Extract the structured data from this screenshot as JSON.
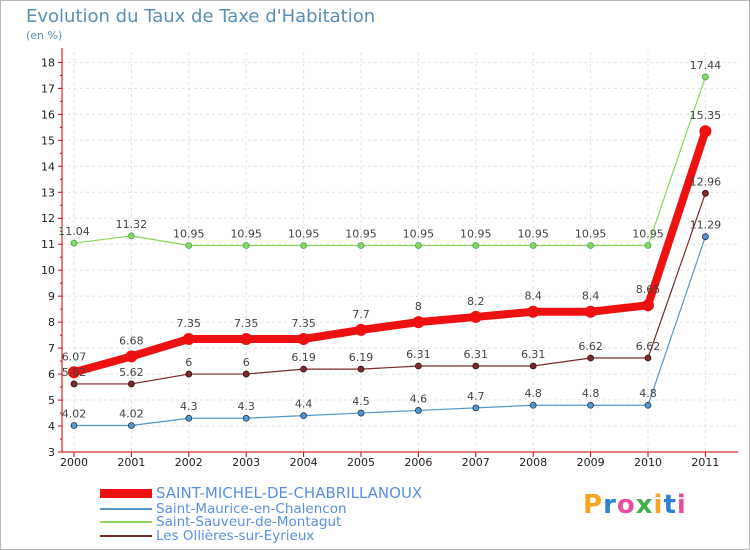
{
  "chart_data": {
    "type": "line",
    "title": "Evolution du Taux de Taxe d'Habitation",
    "unit_label": "(en %)",
    "xlabel": "",
    "ylabel": "",
    "categories": [
      "2000",
      "2001",
      "2002",
      "2003",
      "2004",
      "2005",
      "2006",
      "2007",
      "2008",
      "2009",
      "2010",
      "2011"
    ],
    "y_ticks": [
      "3",
      "4",
      "5",
      "6",
      "7",
      "8",
      "9",
      "10",
      "11",
      "12",
      "13",
      "14",
      "15",
      "16",
      "17",
      "18"
    ],
    "ylim": [
      3,
      18.4
    ],
    "series": [
      {
        "name": "SAINT-MICHEL-DE-CHABRILLANOUX",
        "color": "#ee1111",
        "values": [
          6.07,
          6.68,
          7.35,
          7.35,
          7.35,
          7.7,
          8,
          8.2,
          8.4,
          8.4,
          8.65,
          15.35
        ],
        "labels": [
          "6.07",
          "6.68",
          "7.35",
          "7.35",
          "7.35",
          "7.7",
          "8",
          "8.2",
          "8.4",
          "8.4",
          "8.65",
          "15.35"
        ]
      },
      {
        "name": "Saint-Maurice-en-Chalencon",
        "color": "#5596cc",
        "values": [
          4.02,
          4.02,
          4.3,
          4.3,
          4.4,
          4.5,
          4.6,
          4.7,
          4.8,
          4.8,
          4.8,
          11.29
        ],
        "labels": [
          "4.02",
          "4.02",
          "4.3",
          "4.3",
          "4.4",
          "4.5",
          "4.6",
          "4.7",
          "4.8",
          "4.8",
          "4.8",
          "11.29"
        ]
      },
      {
        "name": "Saint-Sauveur-de-Montagut",
        "color": "#8fd45a",
        "values": [
          11.04,
          11.32,
          10.95,
          10.95,
          10.95,
          10.95,
          10.95,
          10.95,
          10.95,
          10.95,
          10.95,
          17.44
        ],
        "labels": [
          "11.04",
          "11.32",
          "10.95",
          "10.95",
          "10.95",
          "10.95",
          "10.95",
          "10.95",
          "10.95",
          "10.95",
          "10.95",
          "17.44"
        ]
      },
      {
        "name": "Les Ollières-sur-Eyrieux",
        "color": "#7a2a2a",
        "values": [
          5.62,
          5.62,
          6,
          6,
          6.19,
          6.19,
          6.31,
          6.31,
          6.31,
          6.62,
          6.62,
          12.96
        ],
        "labels": [
          "5.62",
          "5.62",
          "6",
          "6",
          "6.19",
          "6.19",
          "6.31",
          "6.31",
          "6.31",
          "6.62",
          "6.62",
          "12.96"
        ]
      }
    ],
    "legend_position": "bottom-left",
    "grid": true
  },
  "logo": {
    "text": "Proxiti",
    "colors": [
      "#f5a623",
      "#2f7fd8",
      "#e94e9a",
      "#3fb14a",
      "#f5a623",
      "#2f7fd8",
      "#e94e9a"
    ]
  }
}
